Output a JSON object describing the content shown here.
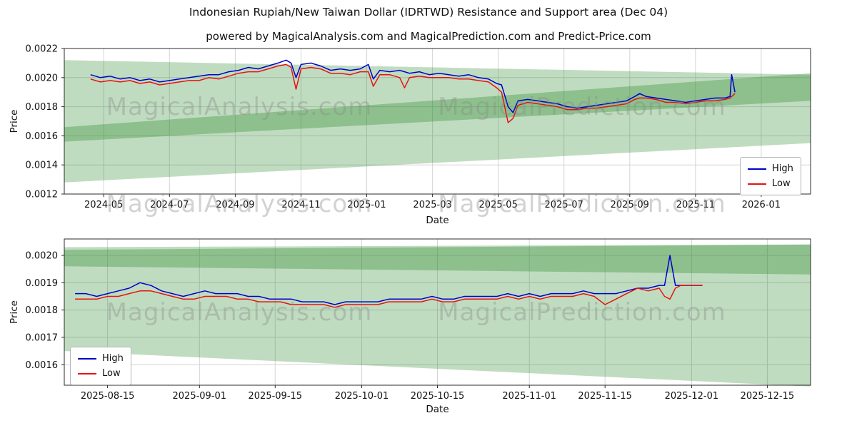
{
  "title": "Indonesian Rupiah/New Taiwan Dollar (IDRTWD) Resistance and Support area (Dec 04)",
  "subtitle": "powered by MagicalAnalysis.com and MagicalPrediction.com and Predict-Price.com",
  "watermarks": {
    "analysis": "MagicalAnalysis.com",
    "prediction": "MagicalPrediction.com"
  },
  "colors": {
    "high": "#0000cd",
    "low": "#e81212",
    "band": "#2e8b2e",
    "grid": "#d4d4d4",
    "spine": "#2b2b2b"
  },
  "chart_data": [
    {
      "type": "line",
      "title": "IDRTWD full history with resistance and support area",
      "xlabel": "Date",
      "ylabel": "Price",
      "xlim": [
        2.8,
        25.5
      ],
      "ylim": [
        0.0012,
        0.0022
      ],
      "grid": true,
      "xticks": [
        {
          "v": 4,
          "label": "2024-05"
        },
        {
          "v": 6,
          "label": "2024-07"
        },
        {
          "v": 8,
          "label": "2024-09"
        },
        {
          "v": 10,
          "label": "2024-11"
        },
        {
          "v": 12,
          "label": "2025-01"
        },
        {
          "v": 14,
          "label": "2025-03"
        },
        {
          "v": 16,
          "label": "2025-05"
        },
        {
          "v": 18,
          "label": "2025-07"
        },
        {
          "v": 20,
          "label": "2025-09"
        },
        {
          "v": 22,
          "label": "2025-11"
        },
        {
          "v": 24,
          "label": "2026-01"
        }
      ],
      "yticks": [
        {
          "v": 0.0012,
          "label": "0.0012"
        },
        {
          "v": 0.0014,
          "label": "0.0014"
        },
        {
          "v": 0.0016,
          "label": "0.0016"
        },
        {
          "v": 0.0018,
          "label": "0.0018"
        },
        {
          "v": 0.002,
          "label": "0.0020"
        },
        {
          "v": 0.0022,
          "label": "0.0022"
        }
      ],
      "legend": {
        "position": "upper right",
        "entries": [
          "High",
          "Low"
        ]
      },
      "series": [
        {
          "name": "High",
          "color": "#0000cd"
        },
        {
          "name": "Low",
          "color": "#e81212"
        }
      ],
      "bands": [
        {
          "name": "support-area",
          "opacity": 0.3,
          "points": [
            [
              2.8,
              0.00212
            ],
            [
              25.5,
              0.00202
            ],
            [
              25.5,
              0.00155
            ],
            [
              2.8,
              0.00128
            ]
          ]
        },
        {
          "name": "resistance-area",
          "opacity": 0.35,
          "points": [
            [
              2.8,
              0.00166
            ],
            [
              25.5,
              0.00203
            ],
            [
              25.5,
              0.00184
            ],
            [
              2.8,
              0.00156
            ]
          ]
        }
      ],
      "points": [
        [
          3.6,
          0.00202,
          0.00199
        ],
        [
          3.9,
          0.002,
          0.00197
        ],
        [
          4.2,
          0.00201,
          0.00198
        ],
        [
          4.5,
          0.00199,
          0.00197
        ],
        [
          4.8,
          0.002,
          0.00198
        ],
        [
          5.1,
          0.00198,
          0.00196
        ],
        [
          5.4,
          0.00199,
          0.00197
        ],
        [
          5.7,
          0.00197,
          0.00195
        ],
        [
          6.0,
          0.00198,
          0.00196
        ],
        [
          6.3,
          0.00199,
          0.00197
        ],
        [
          6.6,
          0.002,
          0.00198
        ],
        [
          6.9,
          0.00201,
          0.00198
        ],
        [
          7.2,
          0.00202,
          0.002
        ],
        [
          7.5,
          0.00202,
          0.00199
        ],
        [
          7.8,
          0.00204,
          0.00201
        ],
        [
          8.1,
          0.00205,
          0.00203
        ],
        [
          8.4,
          0.00207,
          0.00204
        ],
        [
          8.7,
          0.00206,
          0.00204
        ],
        [
          9.0,
          0.00208,
          0.00206
        ],
        [
          9.3,
          0.0021,
          0.00208
        ],
        [
          9.55,
          0.00212,
          0.00209
        ],
        [
          9.7,
          0.0021,
          0.00207
        ],
        [
          9.85,
          0.002,
          0.00192
        ],
        [
          10.0,
          0.00209,
          0.00206
        ],
        [
          10.3,
          0.0021,
          0.00207
        ],
        [
          10.6,
          0.00208,
          0.00206
        ],
        [
          10.9,
          0.00205,
          0.00203
        ],
        [
          11.2,
          0.00206,
          0.00203
        ],
        [
          11.5,
          0.00205,
          0.00202
        ],
        [
          11.8,
          0.00206,
          0.00204
        ],
        [
          12.05,
          0.00209,
          0.00204
        ],
        [
          12.2,
          0.00199,
          0.00194
        ],
        [
          12.4,
          0.00205,
          0.00202
        ],
        [
          12.7,
          0.00204,
          0.00202
        ],
        [
          13.0,
          0.00205,
          0.002
        ],
        [
          13.15,
          0.00204,
          0.00193
        ],
        [
          13.3,
          0.00203,
          0.002
        ],
        [
          13.6,
          0.00204,
          0.00201
        ],
        [
          13.9,
          0.00202,
          0.002
        ],
        [
          14.2,
          0.00203,
          0.002
        ],
        [
          14.5,
          0.00202,
          0.002
        ],
        [
          14.8,
          0.00201,
          0.00199
        ],
        [
          15.1,
          0.00202,
          0.00199
        ],
        [
          15.4,
          0.002,
          0.00198
        ],
        [
          15.7,
          0.00199,
          0.00197
        ],
        [
          15.95,
          0.00196,
          0.00193
        ],
        [
          16.1,
          0.00195,
          0.0019
        ],
        [
          16.3,
          0.0018,
          0.00169
        ],
        [
          16.45,
          0.00176,
          0.00172
        ],
        [
          16.6,
          0.00184,
          0.00181
        ],
        [
          16.9,
          0.00185,
          0.00183
        ],
        [
          17.2,
          0.00184,
          0.00182
        ],
        [
          17.5,
          0.00183,
          0.00181
        ],
        [
          17.8,
          0.00182,
          0.0018
        ],
        [
          18.1,
          0.0018,
          0.00178
        ],
        [
          18.4,
          0.00179,
          0.00178
        ],
        [
          18.7,
          0.0018,
          0.00179
        ],
        [
          19.0,
          0.00181,
          0.00179
        ],
        [
          19.3,
          0.00182,
          0.0018
        ],
        [
          19.6,
          0.00183,
          0.00181
        ],
        [
          19.9,
          0.00184,
          0.00182
        ],
        [
          20.15,
          0.00187,
          0.00185
        ],
        [
          20.3,
          0.00189,
          0.00186
        ],
        [
          20.5,
          0.00187,
          0.00186
        ],
        [
          20.8,
          0.00186,
          0.00185
        ],
        [
          21.1,
          0.00185,
          0.00183
        ],
        [
          21.4,
          0.00184,
          0.00183
        ],
        [
          21.7,
          0.00183,
          0.00182
        ],
        [
          22.0,
          0.00184,
          0.00183
        ],
        [
          22.3,
          0.00185,
          0.00184
        ],
        [
          22.6,
          0.00186,
          0.00184
        ],
        [
          22.9,
          0.00186,
          0.00185
        ],
        [
          23.05,
          0.00187,
          0.00186
        ],
        [
          23.1,
          0.00202,
          0.00187
        ],
        [
          23.2,
          0.0019,
          0.00189
        ]
      ]
    },
    {
      "type": "line",
      "title": "IDRTWD recent months detail with resistance and support area",
      "xlabel": "Date",
      "ylabel": "Price",
      "xlim": [
        -1,
        137
      ],
      "ylim": [
        0.001525,
        0.00206
      ],
      "grid": true,
      "xticks": [
        {
          "v": 7,
          "label": "2025-08-15"
        },
        {
          "v": 24,
          "label": "2025-09-01"
        },
        {
          "v": 38,
          "label": "2025-09-15"
        },
        {
          "v": 54,
          "label": "2025-10-01"
        },
        {
          "v": 68,
          "label": "2025-10-15"
        },
        {
          "v": 85,
          "label": "2025-11-01"
        },
        {
          "v": 99,
          "label": "2025-11-15"
        },
        {
          "v": 115,
          "label": "2025-12-01"
        },
        {
          "v": 129,
          "label": "2025-12-15"
        }
      ],
      "yticks": [
        {
          "v": 0.0016,
          "label": "0.0016"
        },
        {
          "v": 0.0017,
          "label": "0.0017"
        },
        {
          "v": 0.0018,
          "label": "0.0018"
        },
        {
          "v": 0.0019,
          "label": "0.0019"
        },
        {
          "v": 0.002,
          "label": "0.0020"
        }
      ],
      "legend": {
        "position": "lower left",
        "entries": [
          "High",
          "Low"
        ]
      },
      "series": [
        {
          "name": "High",
          "color": "#0000cd"
        },
        {
          "name": "Low",
          "color": "#e81212"
        }
      ],
      "bands": [
        {
          "name": "support-area",
          "opacity": 0.3,
          "points": [
            [
              -1,
              0.00203
            ],
            [
              137,
              0.00204
            ],
            [
              137,
              0.00152
            ],
            [
              -1,
              0.00165
            ]
          ]
        },
        {
          "name": "resistance-area",
          "opacity": 0.35,
          "points": [
            [
              -1,
              0.00202
            ],
            [
              137,
              0.00204
            ],
            [
              137,
              0.00193
            ],
            [
              -1,
              0.00196
            ]
          ]
        }
      ],
      "points": [
        [
          1,
          0.00186,
          0.00184
        ],
        [
          3,
          0.00186,
          0.00184
        ],
        [
          5,
          0.00185,
          0.00184
        ],
        [
          7,
          0.00186,
          0.00185
        ],
        [
          9,
          0.00187,
          0.00185
        ],
        [
          11,
          0.00188,
          0.00186
        ],
        [
          13,
          0.0019,
          0.00187
        ],
        [
          15,
          0.00189,
          0.00187
        ],
        [
          17,
          0.00187,
          0.00186
        ],
        [
          19,
          0.00186,
          0.00185
        ],
        [
          21,
          0.00185,
          0.00184
        ],
        [
          23,
          0.00186,
          0.00184
        ],
        [
          25,
          0.00187,
          0.00185
        ],
        [
          27,
          0.00186,
          0.00185
        ],
        [
          29,
          0.00186,
          0.00185
        ],
        [
          31,
          0.00186,
          0.00184
        ],
        [
          33,
          0.00185,
          0.00184
        ],
        [
          35,
          0.00185,
          0.00183
        ],
        [
          37,
          0.00184,
          0.00183
        ],
        [
          39,
          0.00184,
          0.00183
        ],
        [
          41,
          0.00184,
          0.00182
        ],
        [
          43,
          0.00183,
          0.00182
        ],
        [
          45,
          0.00183,
          0.00182
        ],
        [
          47,
          0.00183,
          0.00182
        ],
        [
          49,
          0.00182,
          0.00181
        ],
        [
          51,
          0.00183,
          0.00182
        ],
        [
          53,
          0.00183,
          0.00182
        ],
        [
          55,
          0.00183,
          0.00182
        ],
        [
          57,
          0.00183,
          0.00182
        ],
        [
          59,
          0.00184,
          0.00183
        ],
        [
          61,
          0.00184,
          0.00183
        ],
        [
          63,
          0.00184,
          0.00183
        ],
        [
          65,
          0.00184,
          0.00183
        ],
        [
          67,
          0.00185,
          0.00184
        ],
        [
          69,
          0.00184,
          0.00183
        ],
        [
          71,
          0.00184,
          0.00183
        ],
        [
          73,
          0.00185,
          0.00184
        ],
        [
          75,
          0.00185,
          0.00184
        ],
        [
          77,
          0.00185,
          0.00184
        ],
        [
          79,
          0.00185,
          0.00184
        ],
        [
          81,
          0.00186,
          0.00185
        ],
        [
          83,
          0.00185,
          0.00184
        ],
        [
          85,
          0.00186,
          0.00185
        ],
        [
          87,
          0.00185,
          0.00184
        ],
        [
          89,
          0.00186,
          0.00185
        ],
        [
          91,
          0.00186,
          0.00185
        ],
        [
          93,
          0.00186,
          0.00185
        ],
        [
          95,
          0.00187,
          0.00186
        ],
        [
          97,
          0.00186,
          0.00185
        ],
        [
          99,
          0.00186,
          0.00182
        ],
        [
          101,
          0.00186,
          0.00184
        ],
        [
          103,
          0.00187,
          0.00186
        ],
        [
          105,
          0.00188,
          0.00188
        ],
        [
          107,
          0.00188,
          0.00187
        ],
        [
          109,
          0.00189,
          0.00188
        ],
        [
          110,
          0.00189,
          0.00185
        ],
        [
          111,
          0.002,
          0.00184
        ],
        [
          112,
          0.00189,
          0.00188
        ],
        [
          113,
          0.00189,
          0.00189
        ],
        [
          115,
          0.00189,
          0.00189
        ],
        [
          117,
          0.00189,
          0.00189
        ]
      ]
    }
  ]
}
